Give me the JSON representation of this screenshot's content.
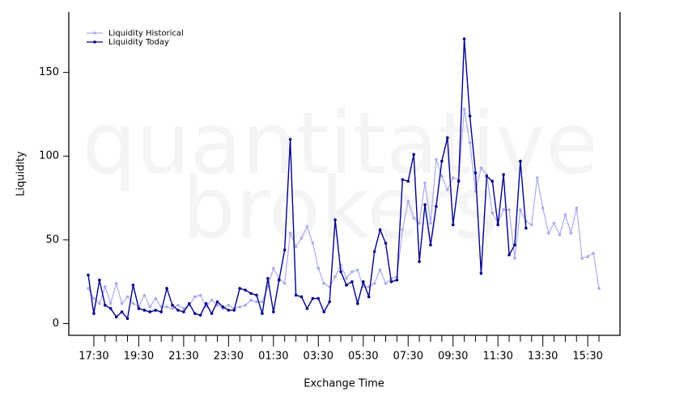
{
  "chart_data": {
    "type": "line",
    "watermark": [
      "quantitative",
      "brokers"
    ],
    "xlabel": "Exchange Time",
    "ylabel": "Liquidity",
    "categories": [
      null,
      "17:30",
      null,
      null,
      null,
      null,
      null,
      null,
      null,
      "19:30",
      null,
      null,
      null,
      null,
      null,
      null,
      null,
      "21:30",
      null,
      null,
      null,
      null,
      null,
      null,
      null,
      "23:30",
      null,
      null,
      null,
      null,
      null,
      null,
      null,
      "01:30",
      null,
      null,
      null,
      null,
      null,
      null,
      null,
      "03:30",
      null,
      null,
      null,
      null,
      null,
      null,
      null,
      "05:30",
      null,
      null,
      null,
      null,
      null,
      null,
      null,
      "07:30",
      null,
      null,
      null,
      null,
      null,
      null,
      null,
      "09:30",
      null,
      null,
      null,
      null,
      null,
      null,
      null,
      "11:30",
      null,
      null,
      null,
      null,
      null,
      null,
      null,
      "13:30",
      null,
      null,
      null,
      null,
      null,
      null,
      null,
      "15:30",
      null,
      null
    ],
    "series": [
      {
        "name": "Liquidity Historical",
        "color": "#aaaaf0",
        "values": [
          21,
          15,
          12,
          22,
          12,
          24,
          12,
          16,
          12,
          10,
          17,
          10,
          15,
          10,
          10,
          9,
          11,
          9,
          11,
          16,
          17,
          10,
          14,
          11,
          9,
          11,
          9,
          10,
          11,
          14,
          13,
          13,
          22,
          33,
          27,
          24,
          54,
          46,
          51,
          58,
          48,
          33,
          24,
          22,
          28,
          35,
          27,
          31,
          32,
          22,
          22,
          24,
          32,
          24,
          27,
          28,
          56,
          73,
          63,
          60,
          84,
          60,
          98,
          88,
          80,
          87,
          86,
          128,
          108,
          79,
          93,
          89,
          66,
          60,
          68,
          68,
          39,
          68,
          61,
          59,
          87,
          69,
          54,
          60,
          53,
          65,
          54,
          69,
          39,
          40,
          42,
          21
        ]
      },
      {
        "name": "Liquidity Today",
        "color": "#00008b",
        "values": [
          29,
          6,
          26,
          11,
          9,
          4,
          7,
          3,
          23,
          9,
          8,
          7,
          8,
          7,
          21,
          11,
          8,
          7,
          12,
          6,
          5,
          12,
          6,
          13,
          10,
          8,
          8,
          21,
          20,
          18,
          17,
          6,
          27,
          7,
          26,
          44,
          110,
          17,
          16,
          9,
          15,
          15,
          7,
          13,
          62,
          31,
          23,
          25,
          12,
          25,
          16,
          43,
          56,
          48,
          25,
          26,
          86,
          85,
          101,
          37,
          71,
          47,
          70,
          97,
          111,
          59,
          85,
          170,
          124,
          90,
          30,
          88,
          85,
          59,
          89,
          41,
          47,
          97,
          57,
          null,
          null,
          null,
          null,
          null,
          null,
          null,
          null,
          null,
          null,
          null,
          null,
          null
        ]
      }
    ],
    "ylim": [
      -7,
      186
    ],
    "yticks": [
      0,
      50,
      100,
      150
    ],
    "legend": "top-left"
  }
}
